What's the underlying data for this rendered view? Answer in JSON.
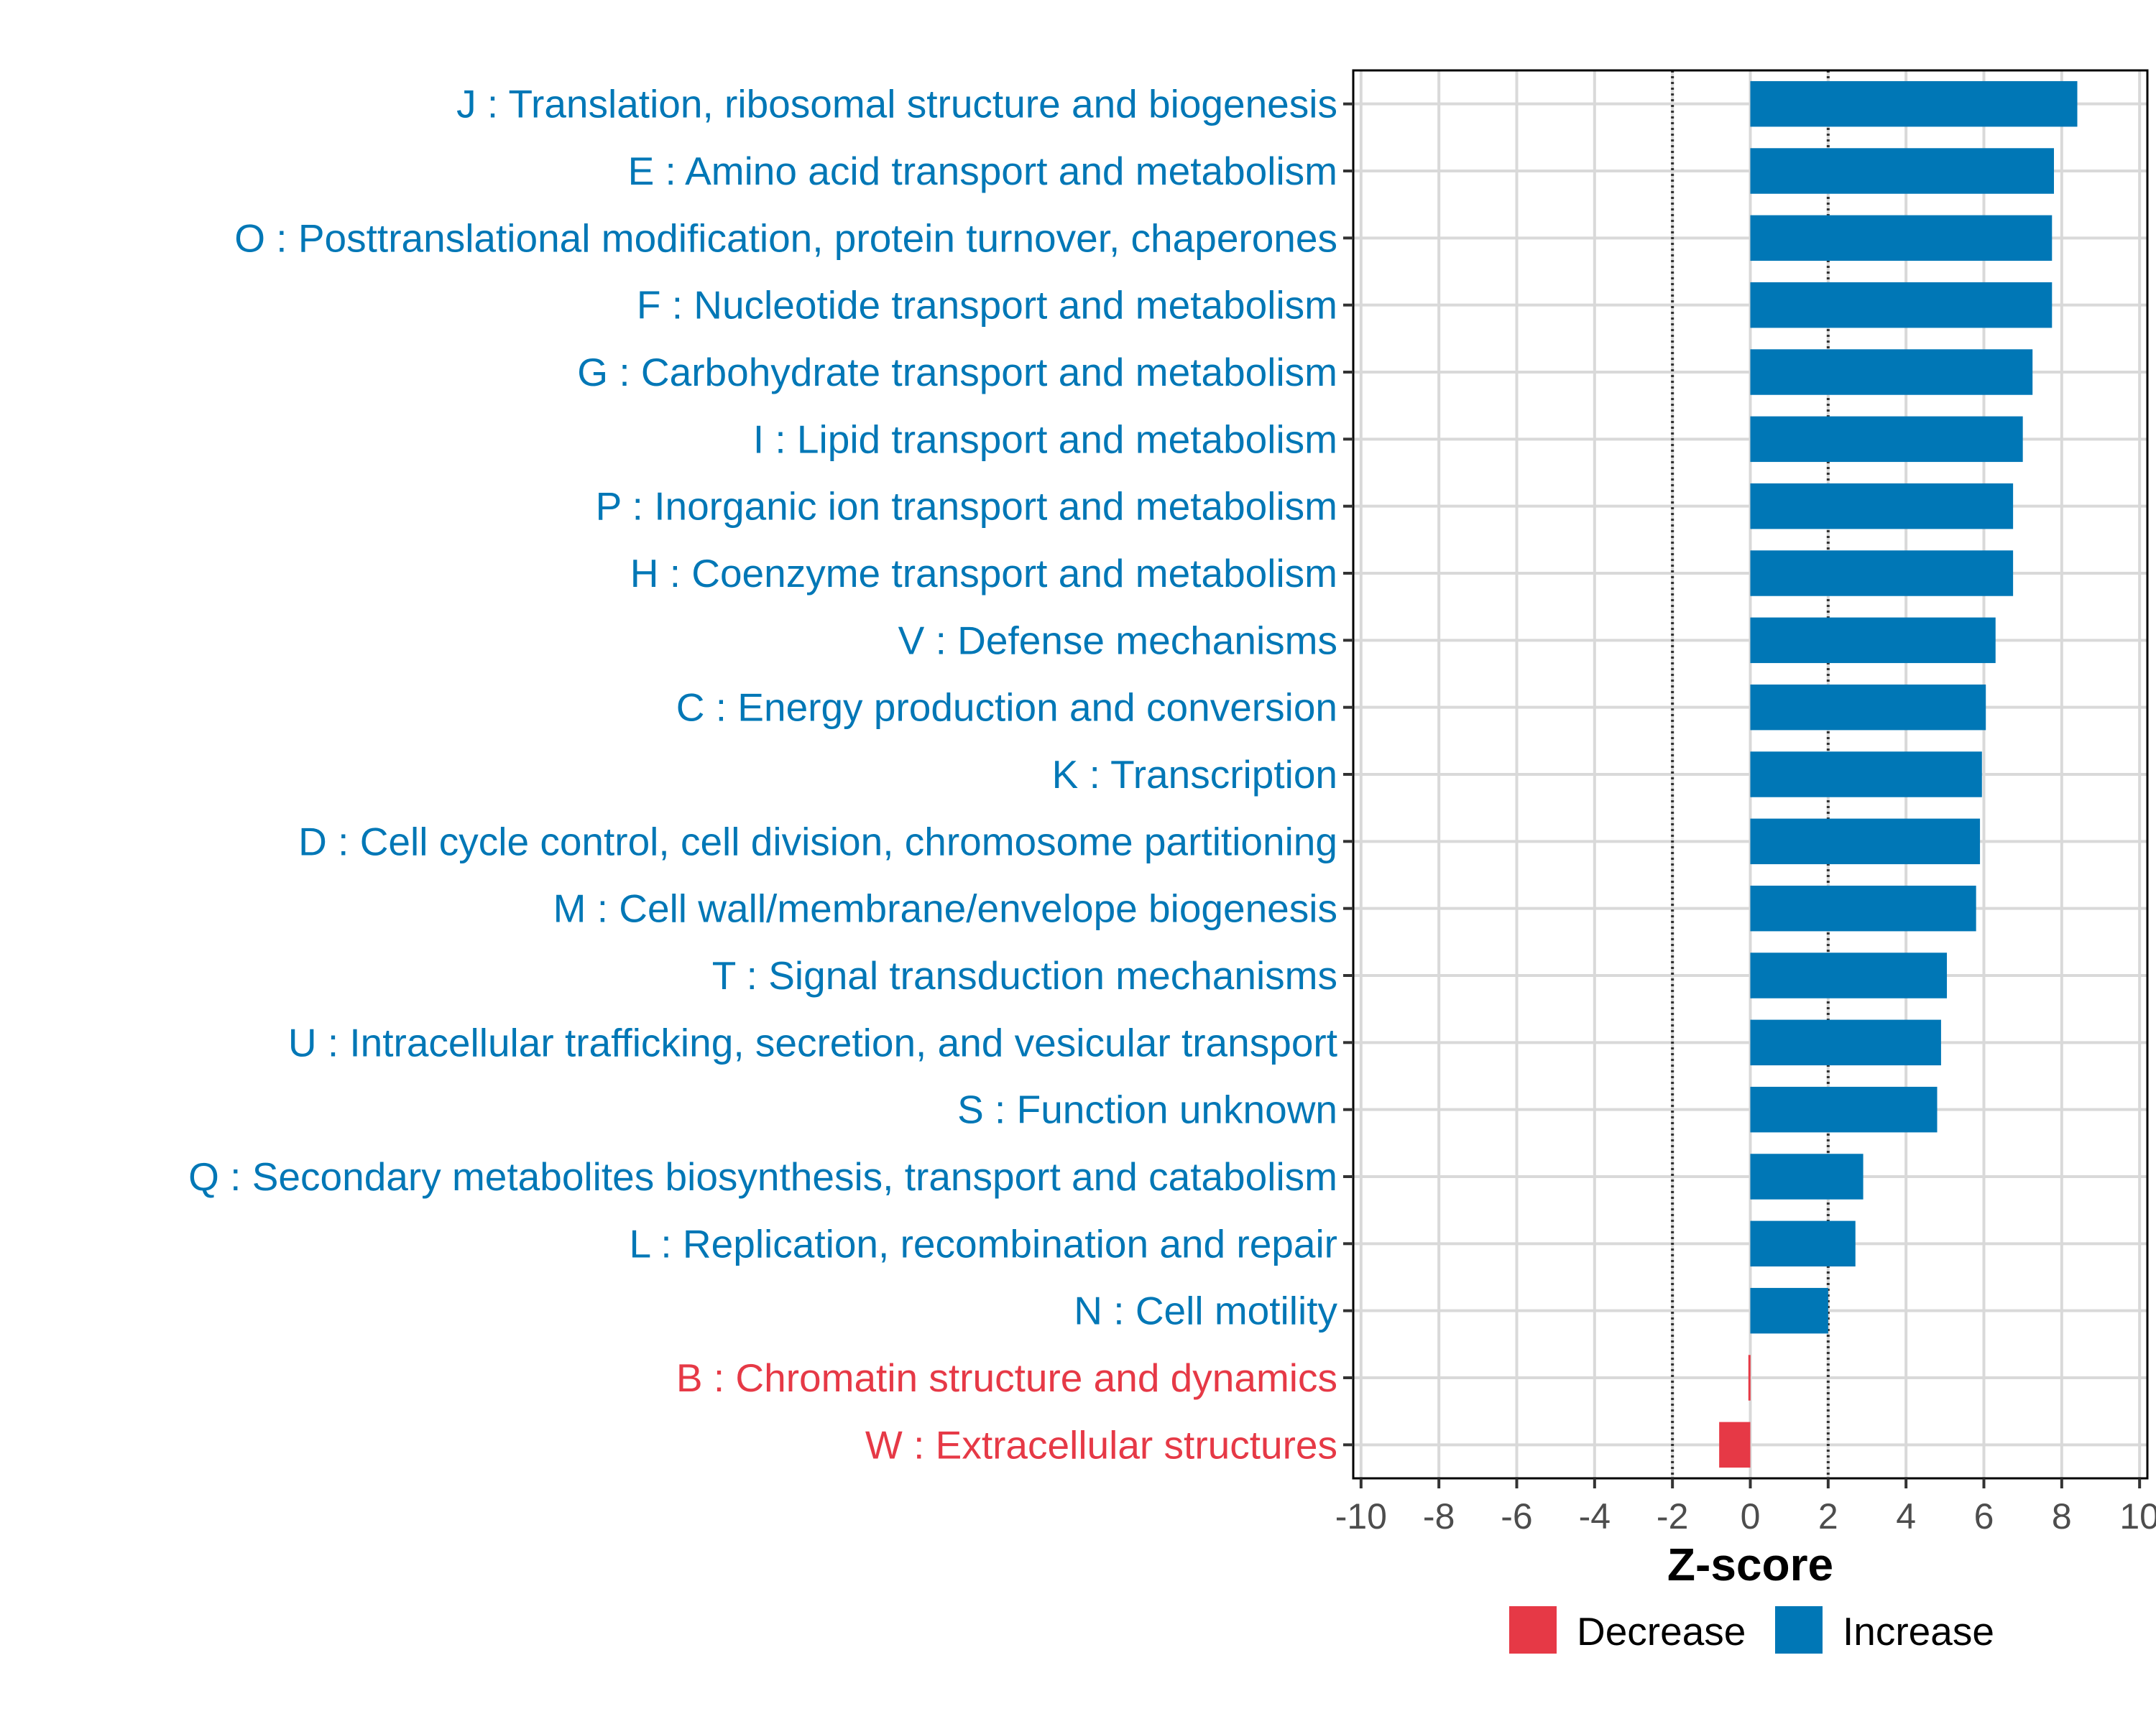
{
  "chart_data": {
    "type": "bar",
    "orientation": "horizontal",
    "xlabel": "Z-score",
    "xlim": [
      -10.2,
      10.2
    ],
    "x_ticks": [
      -10,
      -8,
      -6,
      -4,
      -2,
      0,
      2,
      4,
      6,
      8,
      10
    ],
    "x_tick_labels": [
      "-10",
      "-8",
      "-6",
      "-4",
      "-2",
      "0",
      "2",
      "4",
      "6",
      "8",
      "10"
    ],
    "reference_lines": [
      -2,
      2
    ],
    "grid": true,
    "categories": [
      "J : Translation, ribosomal structure and biogenesis",
      "E : Amino acid transport and metabolism",
      "O : Posttranslational modification, protein turnover, chaperones",
      "F : Nucleotide transport and metabolism",
      "G : Carbohydrate transport and metabolism",
      "I : Lipid transport and metabolism",
      "P : Inorganic ion transport and metabolism",
      "H : Coenzyme transport and metabolism",
      "V : Defense mechanisms",
      "C : Energy production and conversion",
      "K : Transcription",
      "D : Cell cycle control, cell division, chromosome partitioning",
      "M : Cell wall/membrane/envelope biogenesis",
      "T : Signal transduction mechanisms",
      "U : Intracellular trafficking, secretion, and vesicular transport",
      "S : Function unknown",
      "Q : Secondary metabolites biosynthesis, transport and catabolism",
      "L : Replication, recombination and repair",
      "N : Cell motility",
      "B : Chromatin structure and dynamics",
      "W : Extracellular structures"
    ],
    "values": [
      8.4,
      7.8,
      7.75,
      7.75,
      7.25,
      7.0,
      6.75,
      6.75,
      6.3,
      6.05,
      5.95,
      5.9,
      5.8,
      5.05,
      4.9,
      4.8,
      2.9,
      2.7,
      2.0,
      -0.05,
      -0.8
    ],
    "groups": [
      "Increase",
      "Increase",
      "Increase",
      "Increase",
      "Increase",
      "Increase",
      "Increase",
      "Increase",
      "Increase",
      "Increase",
      "Increase",
      "Increase",
      "Increase",
      "Increase",
      "Increase",
      "Increase",
      "Increase",
      "Increase",
      "Increase",
      "Decrease",
      "Decrease"
    ],
    "legend": {
      "position": "bottom",
      "items": [
        {
          "label": "Decrease",
          "color": "#e63946"
        },
        {
          "label": "Increase",
          "color": "#0077b6"
        }
      ]
    },
    "colors": {
      "Decrease": "#e63946",
      "Increase": "#0077b6"
    }
  }
}
